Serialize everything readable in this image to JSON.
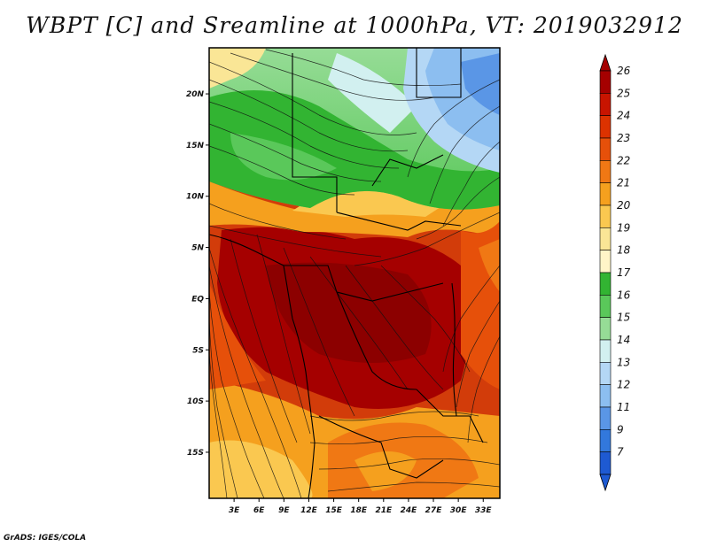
{
  "title": "WBPT [C] and Sreamline at 1000hPa, VT: 2019032912",
  "footer": "GrADS: IGES/COLA",
  "map": {
    "lat_ticks": [
      "20N",
      "15N",
      "10N",
      "5N",
      "EQ",
      "5S",
      "10S",
      "15S"
    ],
    "lon_ticks": [
      "3E",
      "6E",
      "9E",
      "12E",
      "15E",
      "18E",
      "21E",
      "24E",
      "27E",
      "30E",
      "33E"
    ],
    "lat_range": [
      -19.5,
      24.5
    ],
    "lon_range": [
      0,
      35
    ]
  },
  "colorbar": {
    "labels": [
      "26",
      "25",
      "24",
      "23",
      "22",
      "21",
      "20",
      "19",
      "18",
      "17",
      "16",
      "15",
      "14",
      "13",
      "12",
      "11",
      "9",
      "7"
    ],
    "colors": [
      "#a50000",
      "#c81400",
      "#dc3200",
      "#e6500a",
      "#f07814",
      "#f5a01e",
      "#fac850",
      "#fae696",
      "#fff5c8",
      "#32b432",
      "#5ac85a",
      "#96dc96",
      "#d2f0f0",
      "#b4d7f5",
      "#8cbef0",
      "#5a96e6",
      "#3278dc",
      "#1e5ad2"
    ]
  }
}
